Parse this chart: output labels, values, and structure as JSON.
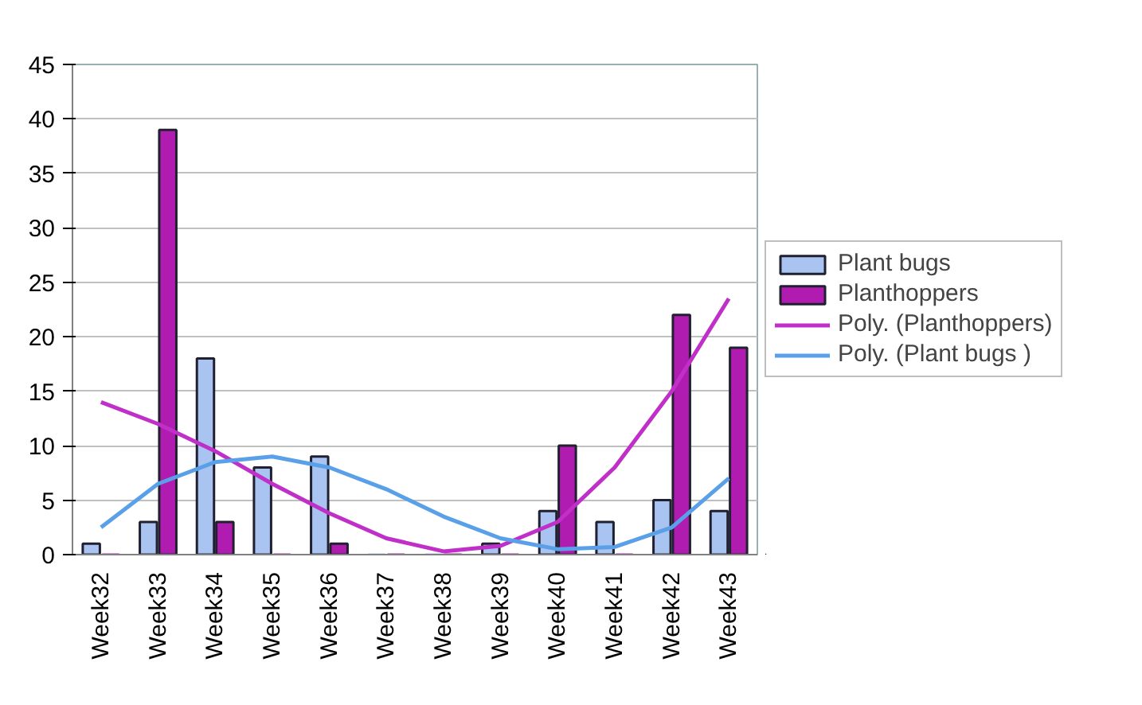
{
  "chart_data": {
    "type": "bar",
    "categories": [
      "Week32",
      "Week33",
      "Week34",
      "Week35",
      "Week36",
      "Week37",
      "Week38",
      "Week39",
      "Week40",
      "Week41",
      "Week42",
      "Week43"
    ],
    "series": [
      {
        "name": "Plant bugs",
        "color": "#a9c4f0",
        "values": [
          1,
          3,
          18,
          8,
          9,
          0,
          0,
          1,
          4,
          3,
          5,
          4
        ]
      },
      {
        "name": "Planthoppers",
        "color": "#b01cb0",
        "values": [
          0,
          39,
          3,
          0,
          1,
          0,
          0,
          0,
          10,
          0,
          22,
          19
        ]
      },
      {
        "name": "Poly. (Planthoppers)",
        "type": "line",
        "color": "#c030c8",
        "values": [
          14,
          12,
          9.5,
          6.5,
          3.8,
          1.5,
          0.3,
          0.8,
          3,
          8,
          15,
          23.5
        ]
      },
      {
        "name": "Poly. (Plant bugs )",
        "type": "line",
        "color": "#5aa0e8",
        "values": [
          2.5,
          6.5,
          8.5,
          9,
          8,
          6,
          3.5,
          1.5,
          0.5,
          0.7,
          2.5,
          7
        ]
      }
    ],
    "ylim": [
      0,
      45
    ],
    "yticks": [
      0,
      5,
      10,
      15,
      20,
      25,
      30,
      35,
      40,
      45
    ],
    "grid": "y",
    "legend": "right",
    "marker": "none",
    "line_style": "solid"
  }
}
